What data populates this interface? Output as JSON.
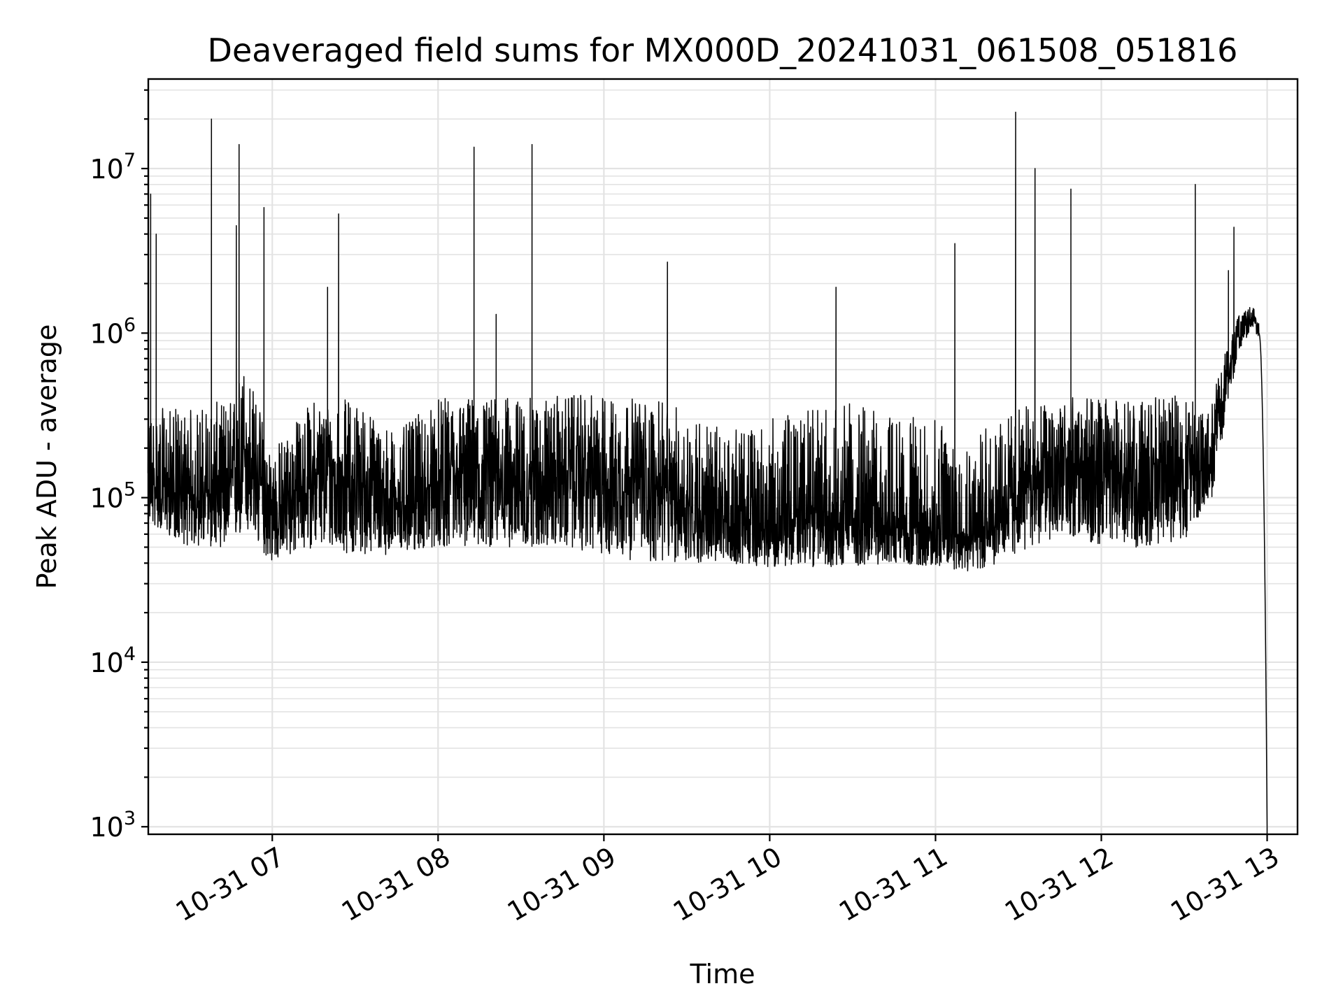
{
  "chart_data": {
    "type": "line",
    "title": "Deaveraged field sums for MX000D_20241031_061508_051816",
    "xlabel": "Time",
    "ylabel": "Peak ADU - average",
    "yscale": "log",
    "ylim": [
      900,
      35000000
    ],
    "xlim": [
      "10-31 06:15:08",
      "10-31 13:11:00"
    ],
    "x_tick_labels": [
      "10-31 07",
      "10-31 08",
      "10-31 09",
      "10-31 10",
      "10-31 11",
      "10-31 12",
      "10-31 13"
    ],
    "x_tick_times": [
      "10-31 07:00",
      "10-31 08:00",
      "10-31 09:00",
      "10-31 10:00",
      "10-31 11:00",
      "10-31 12:00",
      "10-31 13:00"
    ],
    "y_ticks": [
      {
        "base": "10",
        "exp": "3",
        "value": 1000
      },
      {
        "base": "10",
        "exp": "4",
        "value": 10000
      },
      {
        "base": "10",
        "exp": "5",
        "value": 100000
      },
      {
        "base": "10",
        "exp": "6",
        "value": 1000000
      },
      {
        "base": "10",
        "exp": "7",
        "value": 10000000
      }
    ],
    "grid": true,
    "line_color": "#000000",
    "series": [
      {
        "envelope": [
          {
            "x": "10-31 06:15",
            "y_low": 70000,
            "y_mid": 120000,
            "y_high": 350000
          },
          {
            "x": "10-31 06:30",
            "y_low": 50000,
            "y_mid": 100000,
            "y_high": 350000
          },
          {
            "x": "10-31 06:45",
            "y_low": 50000,
            "y_mid": 110000,
            "y_high": 400000
          },
          {
            "x": "10-31 06:50",
            "y_low": 60000,
            "y_mid": 200000,
            "y_high": 700000
          },
          {
            "x": "10-31 07:00",
            "y_low": 40000,
            "y_mid": 80000,
            "y_high": 200000
          },
          {
            "x": "10-31 07:15",
            "y_low": 50000,
            "y_mid": 140000,
            "y_high": 400000
          },
          {
            "x": "10-31 07:30",
            "y_low": 45000,
            "y_mid": 130000,
            "y_high": 400000
          },
          {
            "x": "10-31 07:45",
            "y_low": 45000,
            "y_mid": 90000,
            "y_high": 250000
          },
          {
            "x": "10-31 08:00",
            "y_low": 50000,
            "y_mid": 120000,
            "y_high": 400000
          },
          {
            "x": "10-31 08:15",
            "y_low": 50000,
            "y_mid": 150000,
            "y_high": 420000
          },
          {
            "x": "10-31 08:30",
            "y_low": 50000,
            "y_mid": 130000,
            "y_high": 400000
          },
          {
            "x": "10-31 08:45",
            "y_low": 50000,
            "y_mid": 140000,
            "y_high": 420000
          },
          {
            "x": "10-31 09:00",
            "y_low": 45000,
            "y_mid": 140000,
            "y_high": 420000
          },
          {
            "x": "10-31 09:15",
            "y_low": 40000,
            "y_mid": 130000,
            "y_high": 400000
          },
          {
            "x": "10-31 09:30",
            "y_low": 40000,
            "y_mid": 90000,
            "y_high": 350000
          },
          {
            "x": "10-31 09:45",
            "y_low": 40000,
            "y_mid": 70000,
            "y_high": 250000
          },
          {
            "x": "10-31 10:00",
            "y_low": 38000,
            "y_mid": 65000,
            "y_high": 300000
          },
          {
            "x": "10-31 10:15",
            "y_low": 38000,
            "y_mid": 80000,
            "y_high": 350000
          },
          {
            "x": "10-31 10:30",
            "y_low": 38000,
            "y_mid": 80000,
            "y_high": 380000
          },
          {
            "x": "10-31 10:45",
            "y_low": 40000,
            "y_mid": 65000,
            "y_high": 320000
          },
          {
            "x": "10-31 11:00",
            "y_low": 38000,
            "y_mid": 65000,
            "y_high": 300000
          },
          {
            "x": "10-31 11:15",
            "y_low": 35000,
            "y_mid": 60000,
            "y_high": 250000
          },
          {
            "x": "10-31 11:30",
            "y_low": 45000,
            "y_mid": 110000,
            "y_high": 350000
          },
          {
            "x": "10-31 11:45",
            "y_low": 60000,
            "y_mid": 170000,
            "y_high": 420000
          },
          {
            "x": "10-31 12:00",
            "y_low": 50000,
            "y_mid": 140000,
            "y_high": 400000
          },
          {
            "x": "10-31 12:15",
            "y_low": 50000,
            "y_mid": 140000,
            "y_high": 400000
          },
          {
            "x": "10-31 12:30",
            "y_low": 55000,
            "y_mid": 160000,
            "y_high": 420000
          },
          {
            "x": "10-31 12:40",
            "y_low": 100000,
            "y_mid": 200000,
            "y_high": 400000
          },
          {
            "x": "10-31 12:45",
            "y_low": 300000,
            "y_mid": 500000,
            "y_high": 800000
          },
          {
            "x": "10-31 12:50",
            "y_low": 800000,
            "y_mid": 1100000,
            "y_high": 1300000
          },
          {
            "x": "10-31 12:55",
            "y_low": 1100000,
            "y_mid": 1250000,
            "y_high": 1500000
          },
          {
            "x": "10-31 12:58",
            "y_low": 800000,
            "y_mid": 900000,
            "y_high": 1000000
          },
          {
            "x": "10-31 13:00",
            "y_low": 1000,
            "y_mid": 1000,
            "y_high": 1000
          }
        ],
        "spikes": [
          {
            "x": "10-31 06:16",
            "y": 7000000
          },
          {
            "x": "10-31 06:18",
            "y": 4000000
          },
          {
            "x": "10-31 06:38",
            "y": 20000000
          },
          {
            "x": "10-31 06:47",
            "y": 4500000
          },
          {
            "x": "10-31 06:48",
            "y": 14000000
          },
          {
            "x": "10-31 06:57",
            "y": 5800000
          },
          {
            "x": "10-31 07:20",
            "y": 1900000
          },
          {
            "x": "10-31 07:24",
            "y": 5300000
          },
          {
            "x": "10-31 08:13",
            "y": 13500000
          },
          {
            "x": "10-31 08:21",
            "y": 1300000
          },
          {
            "x": "10-31 08:34",
            "y": 14000000
          },
          {
            "x": "10-31 09:23",
            "y": 2700000
          },
          {
            "x": "10-31 10:24",
            "y": 1900000
          },
          {
            "x": "10-31 11:07",
            "y": 3500000
          },
          {
            "x": "10-31 11:29",
            "y": 22000000
          },
          {
            "x": "10-31 11:36",
            "y": 10000000
          },
          {
            "x": "10-31 11:49",
            "y": 7500000
          },
          {
            "x": "10-31 12:34",
            "y": 8000000
          },
          {
            "x": "10-31 12:46",
            "y": 2400000
          },
          {
            "x": "10-31 12:48",
            "y": 4400000
          }
        ]
      }
    ]
  }
}
